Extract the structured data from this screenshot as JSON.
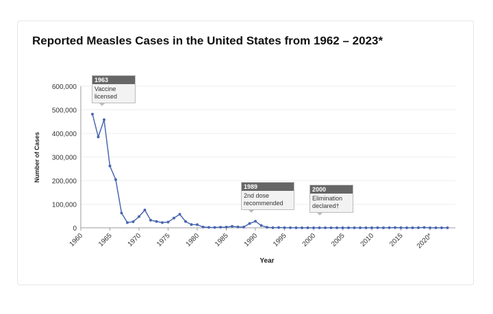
{
  "chart_data": {
    "type": "line",
    "title": "Reported Measles Cases in the United States from 1962 – 2023*",
    "xlabel": "Year",
    "ylabel": "Number of Cases",
    "xlim": [
      1960,
      2024
    ],
    "ylim": [
      0,
      600000
    ],
    "grid": true,
    "x_ticks": [
      "1960",
      "1965",
      "1970",
      "1975",
      "1980",
      "1985",
      "1990",
      "1995",
      "2000",
      "2005",
      "2010",
      "2015",
      "2020*"
    ],
    "y_ticks": [
      "0",
      "100,000",
      "200,000",
      "300,000",
      "400,000",
      "500,000",
      "600,000"
    ],
    "color": "#4a67b0",
    "x": [
      1962,
      1963,
      1964,
      1965,
      1966,
      1967,
      1968,
      1969,
      1970,
      1971,
      1972,
      1973,
      1974,
      1975,
      1976,
      1977,
      1978,
      1979,
      1980,
      1981,
      1982,
      1983,
      1984,
      1985,
      1986,
      1987,
      1988,
      1989,
      1990,
      1991,
      1992,
      1993,
      1994,
      1995,
      1996,
      1997,
      1998,
      1999,
      2000,
      2001,
      2002,
      2003,
      2004,
      2005,
      2006,
      2007,
      2008,
      2009,
      2010,
      2011,
      2012,
      2013,
      2014,
      2015,
      2016,
      2017,
      2018,
      2019,
      2020,
      2021,
      2022,
      2023
    ],
    "values": [
      481530,
      385156,
      458083,
      261904,
      204136,
      62705,
      22231,
      25826,
      47351,
      75290,
      32275,
      26690,
      22094,
      24374,
      41126,
      57345,
      26871,
      13597,
      13506,
      3124,
      1714,
      1497,
      2587,
      2822,
      6282,
      3655,
      3396,
      18193,
      27786,
      9643,
      2126,
      312,
      963,
      309,
      508,
      138,
      100,
      100,
      86,
      116,
      44,
      56,
      37,
      66,
      55,
      43,
      140,
      71,
      63,
      220,
      55,
      187,
      667,
      188,
      86,
      120,
      375,
      1274,
      13,
      49,
      121,
      59
    ],
    "annotations": [
      {
        "year": "1963",
        "text1": "Vaccine",
        "text2": "licensed"
      },
      {
        "year": "1989",
        "text1": "2nd dose",
        "text2": "recommended"
      },
      {
        "year": "2000",
        "text1": "Elimination",
        "text2": "declared†"
      }
    ]
  }
}
